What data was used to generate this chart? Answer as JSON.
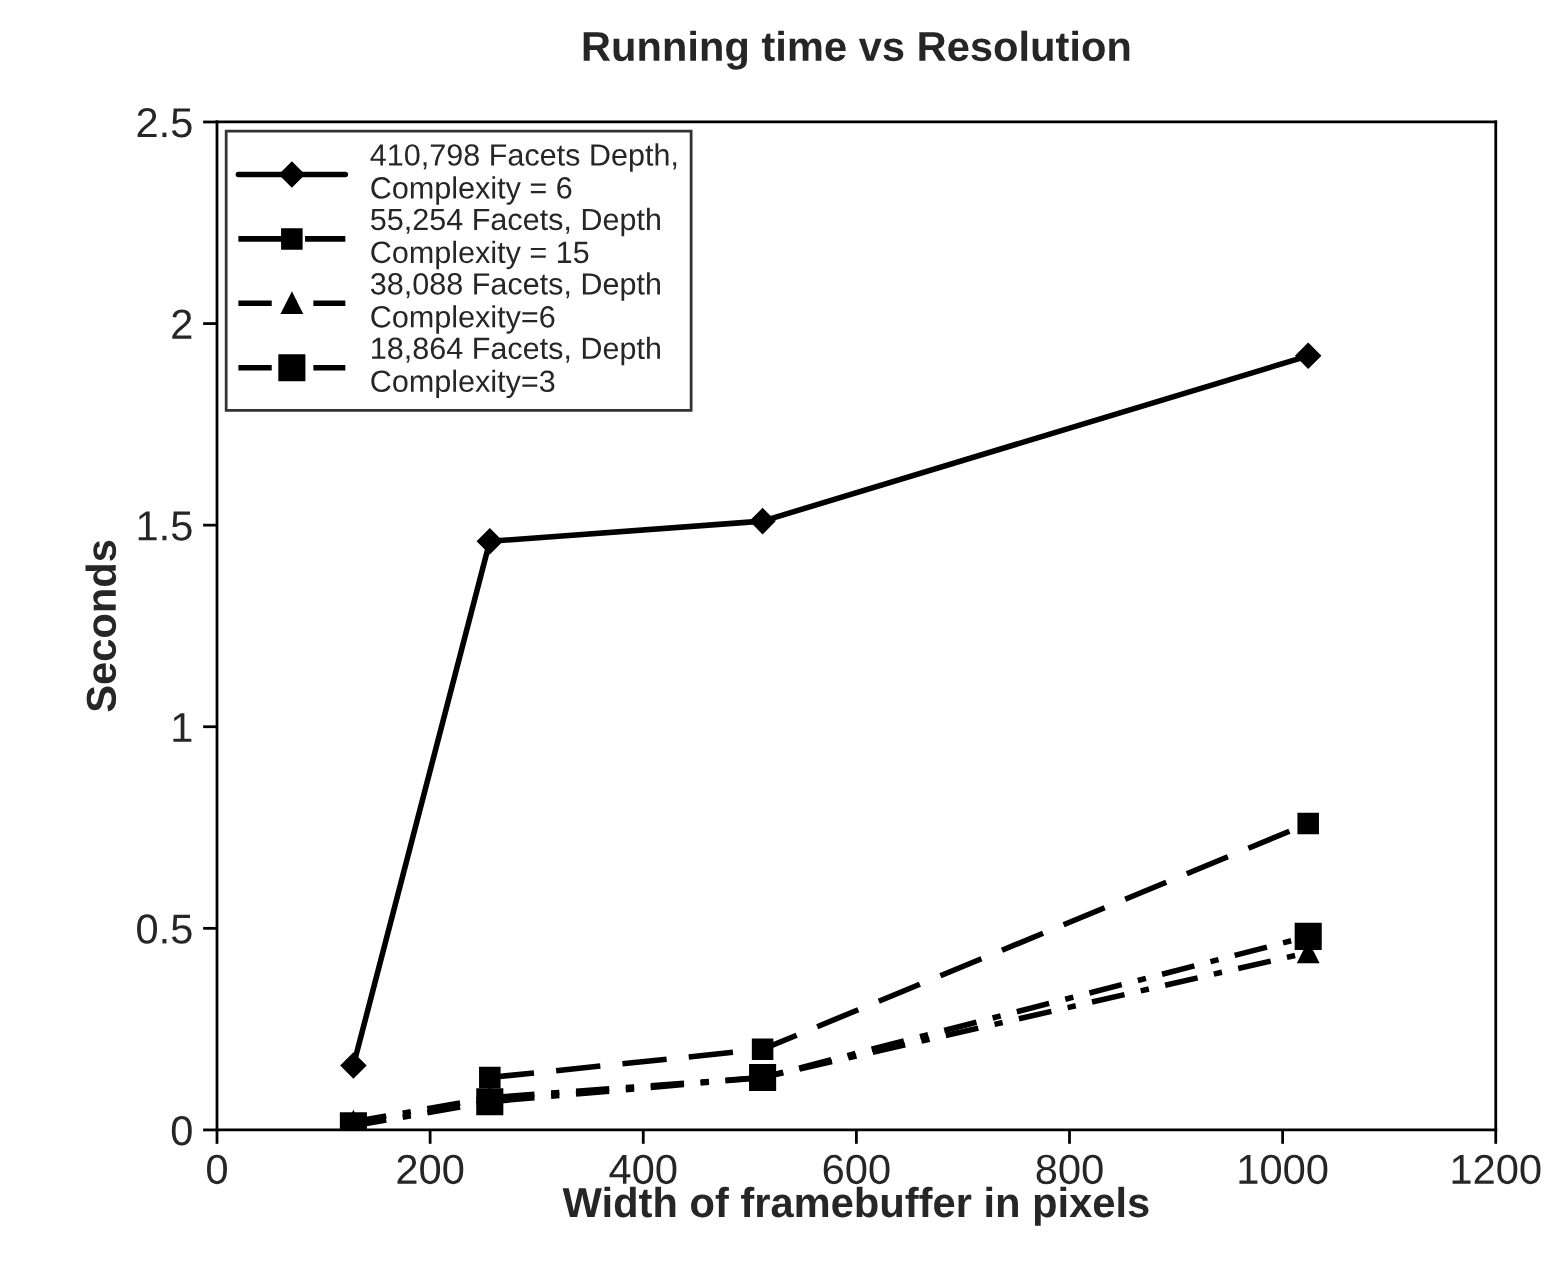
{
  "chart_data": {
    "type": "line",
    "title": "Running time vs Resolution",
    "xlabel": "Width of framebuffer in pixels",
    "ylabel": "Seconds",
    "x": [
      128,
      256,
      512,
      1024
    ],
    "series": [
      {
        "name": "410,798 Facets Depth,\nComplexity = 6",
        "color": "#000000",
        "marker": "diamond",
        "line_style": "solid",
        "values": [
          0.16,
          1.46,
          1.51,
          1.92
        ]
      },
      {
        "name": "55,254 Facets, Depth\nComplexity = 15",
        "color": "#000000",
        "marker": "square",
        "line_style": "dashed",
        "values": [
          null,
          0.13,
          0.2,
          0.76
        ]
      },
      {
        "name": "38,088 Facets, Depth\nComplexity=6",
        "color": "#000000",
        "marker": "triangle",
        "line_style": "dotted",
        "values": [
          0.02,
          0.08,
          0.13,
          0.44
        ]
      },
      {
        "name": "18,864 Facets, Depth\nComplexity=3",
        "color": "#000000",
        "marker": "square",
        "line_style": "dotted",
        "values": [
          0.01,
          0.07,
          0.13,
          0.48
        ]
      }
    ],
    "xlim": [
      0,
      1200
    ],
    "xticks": [
      0,
      200,
      400,
      600,
      800,
      1000,
      1200
    ],
    "ylim": [
      0,
      2.5
    ],
    "yticks": [
      0,
      0.5,
      1,
      1.5,
      2,
      2.5
    ],
    "grid": false,
    "legend": "top left"
  }
}
